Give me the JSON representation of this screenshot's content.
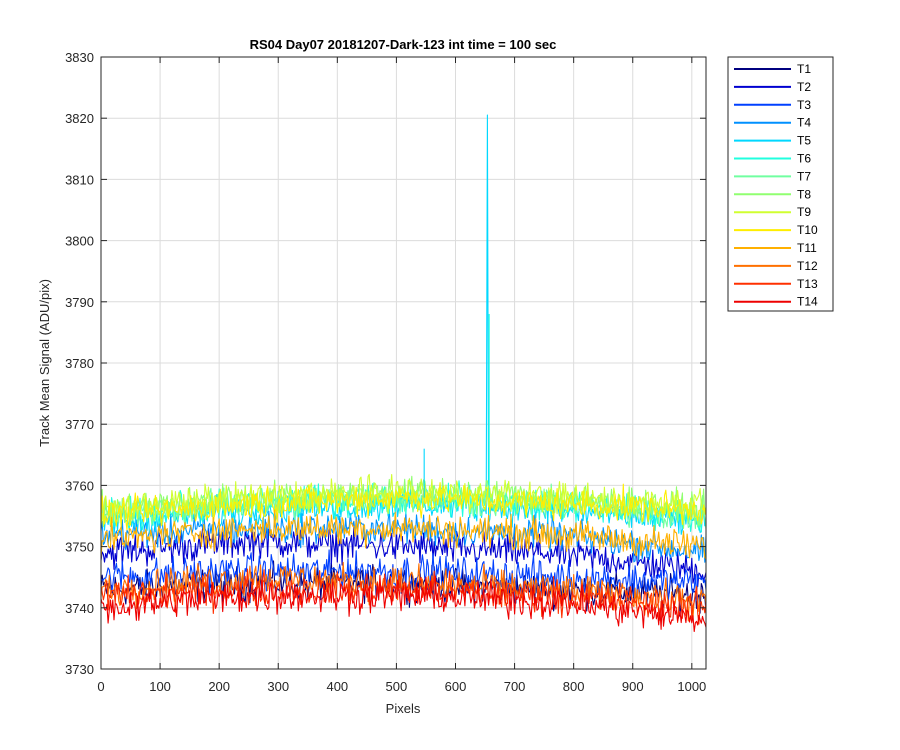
{
  "chart_data": {
    "type": "line",
    "title": "RS04 Day07 20181207-Dark-123 int time = 100 sec",
    "xlabel": "Pixels",
    "ylabel": "Track Mean Signal (ADU/pix)",
    "xlim": [
      0,
      1024
    ],
    "ylim": [
      3730,
      3830
    ],
    "xticks": [
      0,
      100,
      200,
      300,
      400,
      500,
      600,
      700,
      800,
      900,
      1000
    ],
    "yticks": [
      3730,
      3740,
      3750,
      3760,
      3770,
      3780,
      3790,
      3800,
      3810,
      3820,
      3830
    ],
    "grid": true,
    "legend_position": "outside-top-right",
    "spike": {
      "x": 654,
      "peak": 3820.5,
      "series": "T5"
    },
    "series": [
      {
        "name": "T1",
        "color": "#00007f",
        "base": [
          3743,
          3744,
          3744,
          3743,
          3742
        ],
        "noise": 2.6
      },
      {
        "name": "T2",
        "color": "#0000d0",
        "base": [
          3749,
          3751,
          3750,
          3749,
          3746
        ],
        "noise": 2.6
      },
      {
        "name": "T3",
        "color": "#0040ff",
        "base": [
          3745,
          3746,
          3746,
          3745,
          3744
        ],
        "noise": 2.6
      },
      {
        "name": "T4",
        "color": "#0090ff",
        "base": [
          3752,
          3753,
          3753,
          3752,
          3749
        ],
        "noise": 2.4
      },
      {
        "name": "T5",
        "color": "#00d8ff",
        "base": [
          3754,
          3756,
          3757,
          3756,
          3754
        ],
        "noise": 2.4
      },
      {
        "name": "T6",
        "color": "#20ffdf",
        "base": [
          3755,
          3757,
          3758,
          3757,
          3755
        ],
        "noise": 2.4
      },
      {
        "name": "T7",
        "color": "#70ffa0",
        "base": [
          3755,
          3757,
          3758,
          3757,
          3755
        ],
        "noise": 2.4
      },
      {
        "name": "T8",
        "color": "#90ff70",
        "base": [
          3756,
          3758,
          3759,
          3758,
          3756
        ],
        "noise": 2.4
      },
      {
        "name": "T9",
        "color": "#d0ff30",
        "base": [
          3756,
          3758,
          3759,
          3758,
          3757
        ],
        "noise": 2.4
      },
      {
        "name": "T10",
        "color": "#ffee00",
        "base": [
          3755,
          3757,
          3758,
          3757,
          3756
        ],
        "noise": 2.4
      },
      {
        "name": "T11",
        "color": "#ffb000",
        "base": [
          3751,
          3753,
          3753,
          3752,
          3750
        ],
        "noise": 2.4
      },
      {
        "name": "T12",
        "color": "#ff7000",
        "base": [
          3743,
          3745,
          3744,
          3743,
          3741
        ],
        "noise": 2.6
      },
      {
        "name": "T13",
        "color": "#ff3000",
        "base": [
          3742,
          3743,
          3743,
          3742,
          3740
        ],
        "noise": 2.6
      },
      {
        "name": "T14",
        "color": "#ee0000",
        "base": [
          3740,
          3742,
          3742,
          3741,
          3738
        ],
        "noise": 2.6
      }
    ]
  }
}
